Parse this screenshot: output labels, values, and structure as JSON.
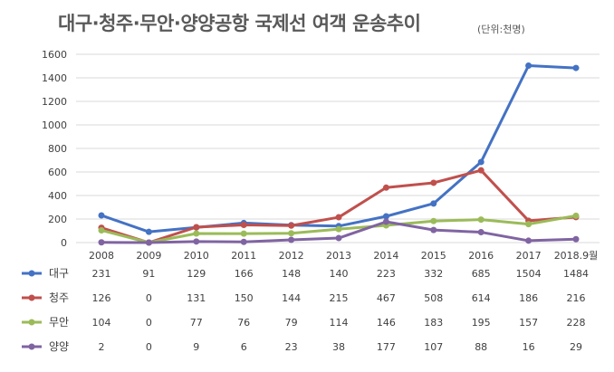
{
  "header": {
    "title": "대구·청주·무안·양양공항 국제선 여객 운송추이",
    "unit": "(단위:천명)"
  },
  "chart_data": {
    "type": "line",
    "title": "대구·청주·무안·양양공항 국제선 여객 운송추이",
    "unit": "(단위:천명)",
    "categories": [
      "2008",
      "2009",
      "2010",
      "2011",
      "2012",
      "2013",
      "2014",
      "2015",
      "2016",
      "2017",
      "2018.9월"
    ],
    "y_ticks": [
      "0",
      "200",
      "400",
      "600",
      "800",
      "1000",
      "1200",
      "1400",
      "1600"
    ],
    "ylim": [
      0,
      1600
    ],
    "grid": true,
    "legend": "data-table-below",
    "series": [
      {
        "name": "대구",
        "color": "#4472C4",
        "values": [
          231,
          91,
          129,
          166,
          148,
          140,
          223,
          332,
          685,
          1504,
          1484
        ]
      },
      {
        "name": "청주",
        "color": "#C0504D",
        "values": [
          126,
          0,
          131,
          150,
          144,
          215,
          467,
          508,
          614,
          186,
          216
        ]
      },
      {
        "name": "무안",
        "color": "#9BBB59",
        "values": [
          104,
          0,
          77,
          76,
          79,
          114,
          146,
          183,
          195,
          157,
          228
        ]
      },
      {
        "name": "양양",
        "color": "#8064A2",
        "values": [
          2,
          0,
          9,
          6,
          23,
          38,
          177,
          107,
          88,
          16,
          29
        ]
      }
    ]
  }
}
